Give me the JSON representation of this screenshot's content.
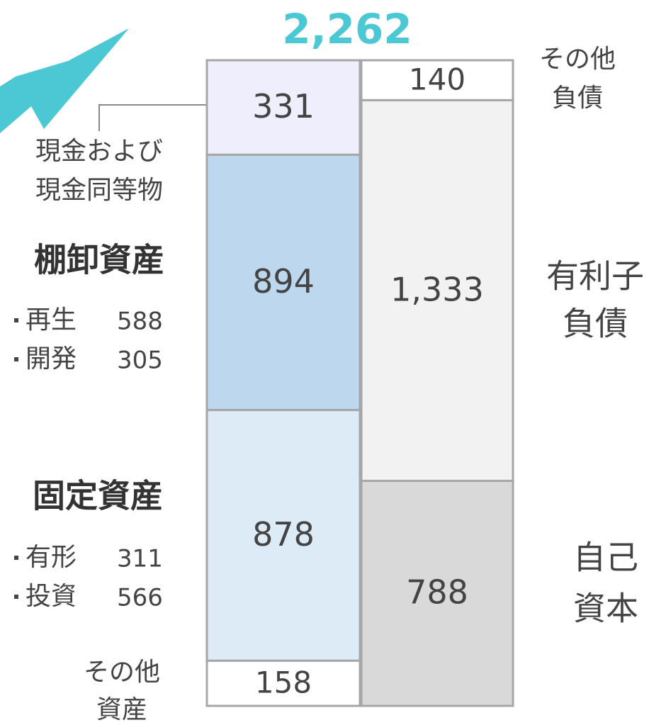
{
  "chart_data": {
    "type": "stacked-bar",
    "title": "2,262",
    "title_color": "#4bc8d4",
    "stacks": [
      {
        "categories": [
          [
            "現金および",
            "現金同等物"
          ],
          [
            "棚卸資産"
          ],
          [
            "固定資産"
          ],
          [
            "その他",
            "資産"
          ]
        ],
        "values": [
          331,
          894,
          878,
          158
        ],
        "value_labels": [
          "331",
          "894",
          "878",
          "158"
        ],
        "colors": [
          "#eeeefc",
          "#bdd7ee",
          "#ddebf7",
          "#ffffff"
        ],
        "details": [
          [],
          [
            {
              "name": "再生",
              "value": 588
            },
            {
              "name": "開発",
              "value": 305
            }
          ],
          [
            {
              "name": "有形",
              "value": 311
            },
            {
              "name": "投資",
              "value": 566
            }
          ],
          []
        ]
      },
      {
        "categories": [
          [
            "その他",
            "負債"
          ],
          [
            "有利子",
            "負債"
          ],
          [
            "自己",
            "資本"
          ]
        ],
        "values": [
          140,
          1333,
          788
        ],
        "value_labels": [
          "140",
          "1,333",
          "788"
        ],
        "colors": [
          "#ffffff",
          "#f2f2f2",
          "#d9d9d9"
        ]
      }
    ]
  }
}
